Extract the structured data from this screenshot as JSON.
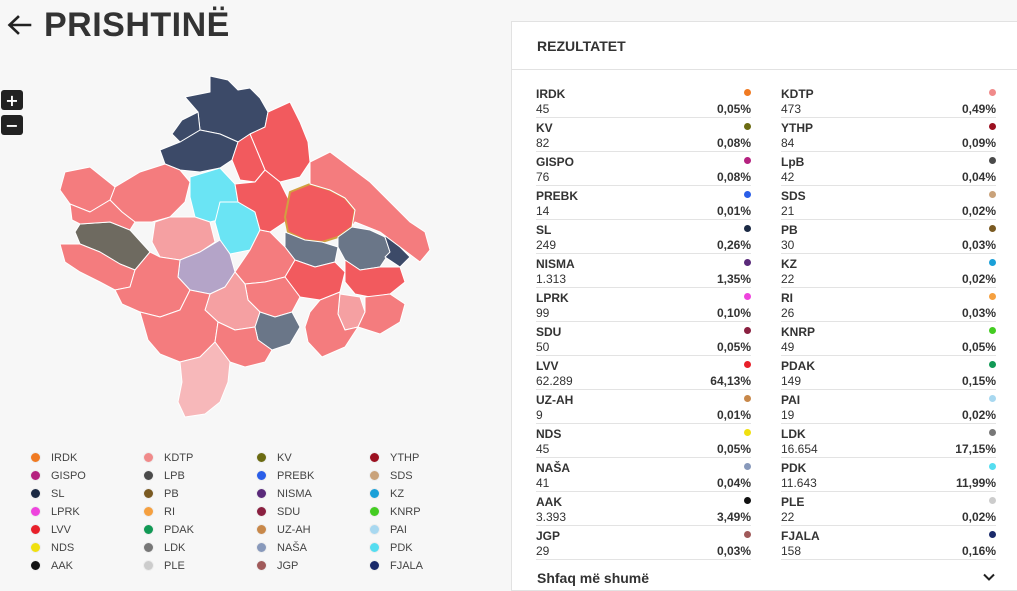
{
  "page": {
    "title": "PRISHTINË"
  },
  "zoom": {
    "in_label": "+",
    "out_label": "−"
  },
  "panel": {
    "title": "REZULTATET",
    "show_more": "Shfaq më shumë",
    "results": [
      {
        "name": "IRDK",
        "votes": "45",
        "pct": "0,05%",
        "color": "#f07a22"
      },
      {
        "name": "KDTP",
        "votes": "473",
        "pct": "0,49%",
        "color": "#f08a8a"
      },
      {
        "name": "KV",
        "votes": "82",
        "pct": "0,08%",
        "color": "#6b6b12"
      },
      {
        "name": "YTHP",
        "votes": "84",
        "pct": "0,09%",
        "color": "#9b1020"
      },
      {
        "name": "GISPO",
        "votes": "76",
        "pct": "0,08%",
        "color": "#b5227f"
      },
      {
        "name": "LpB",
        "votes": "42",
        "pct": "0,04%",
        "color": "#4a4a4a"
      },
      {
        "name": "PREBK",
        "votes": "14",
        "pct": "0,01%",
        "color": "#2a5ee8"
      },
      {
        "name": "SDS",
        "votes": "21",
        "pct": "0,02%",
        "color": "#c9a27a"
      },
      {
        "name": "SL",
        "votes": "249",
        "pct": "0,26%",
        "color": "#1c2a44"
      },
      {
        "name": "PB",
        "votes": "30",
        "pct": "0,03%",
        "color": "#7a5a22"
      },
      {
        "name": "NISMA",
        "votes": "1.313",
        "pct": "1,35%",
        "color": "#5a2a7a"
      },
      {
        "name": "KZ",
        "votes": "22",
        "pct": "0,02%",
        "color": "#1aa0d8"
      },
      {
        "name": "LPRK",
        "votes": "99",
        "pct": "0,10%",
        "color": "#ee44dd"
      },
      {
        "name": "RI",
        "votes": "26",
        "pct": "0,03%",
        "color": "#f5a040"
      },
      {
        "name": "SDU",
        "votes": "50",
        "pct": "0,05%",
        "color": "#8a2040"
      },
      {
        "name": "KNRP",
        "votes": "49",
        "pct": "0,05%",
        "color": "#44cc22"
      },
      {
        "name": "LVV",
        "votes": "62.289",
        "pct": "64,13%",
        "color": "#e8202a"
      },
      {
        "name": "PDAK",
        "votes": "149",
        "pct": "0,15%",
        "color": "#119955"
      },
      {
        "name": "UZ-AH",
        "votes": "9",
        "pct": "0,01%",
        "color": "#c8884a"
      },
      {
        "name": "PAI",
        "votes": "19",
        "pct": "0,02%",
        "color": "#a8d8f0"
      },
      {
        "name": "NDS",
        "votes": "45",
        "pct": "0,05%",
        "color": "#f0e010"
      },
      {
        "name": "LDK",
        "votes": "16.654",
        "pct": "17,15%",
        "color": "#777777"
      },
      {
        "name": "NAŠA",
        "votes": "41",
        "pct": "0,04%",
        "color": "#8899bb"
      },
      {
        "name": "PDK",
        "votes": "11.643",
        "pct": "11,99%",
        "color": "#55ddf0"
      },
      {
        "name": "AAK",
        "votes": "3.393",
        "pct": "3,49%",
        "color": "#111111"
      },
      {
        "name": "PLE",
        "votes": "22",
        "pct": "0,02%",
        "color": "#cccccc"
      },
      {
        "name": "JGP",
        "votes": "29",
        "pct": "0,03%",
        "color": "#a05a5a"
      },
      {
        "name": "FJALA",
        "votes": "158",
        "pct": "0,16%",
        "color": "#1a2a6a"
      }
    ]
  },
  "legend": [
    {
      "label": "IRDK",
      "color": "#f07a22"
    },
    {
      "label": "KDTP",
      "color": "#f08a8a"
    },
    {
      "label": "KV",
      "color": "#6b6b12"
    },
    {
      "label": "YTHP",
      "color": "#9b1020"
    },
    {
      "label": "GISPO",
      "color": "#b5227f"
    },
    {
      "label": "LPB",
      "color": "#4a4a4a"
    },
    {
      "label": "PREBK",
      "color": "#2a5ee8"
    },
    {
      "label": "SDS",
      "color": "#c9a27a"
    },
    {
      "label": "SL",
      "color": "#1c2a44"
    },
    {
      "label": "PB",
      "color": "#7a5a22"
    },
    {
      "label": "NISMA",
      "color": "#5a2a7a"
    },
    {
      "label": "KZ",
      "color": "#1aa0d8"
    },
    {
      "label": "LPRK",
      "color": "#ee44dd"
    },
    {
      "label": "RI",
      "color": "#f5a040"
    },
    {
      "label": "SDU",
      "color": "#8a2040"
    },
    {
      "label": "KNRP",
      "color": "#44cc22"
    },
    {
      "label": "LVV",
      "color": "#e8202a"
    },
    {
      "label": "PDAK",
      "color": "#119955"
    },
    {
      "label": "UZ-AH",
      "color": "#c8884a"
    },
    {
      "label": "PAI",
      "color": "#a8d8f0"
    },
    {
      "label": "NDS",
      "color": "#f0e010"
    },
    {
      "label": "LDK",
      "color": "#777777"
    },
    {
      "label": "NAŠA",
      "color": "#8899bb"
    },
    {
      "label": "PDK",
      "color": "#55ddf0"
    },
    {
      "label": "AAK",
      "color": "#111111"
    },
    {
      "label": "PLE",
      "color": "#cccccc"
    },
    {
      "label": "JGP",
      "color": "#a05a5a"
    },
    {
      "label": "FJALA",
      "color": "#1a2a6a"
    }
  ],
  "map_colors": {
    "lvv_strong": "#f25a5e",
    "lvv_mid": "#f47c7e",
    "lvv_light": "#f5a0a2",
    "lvv_pale": "#f7b8ba",
    "srb": "#3c4a68",
    "ldk": "#6a7688",
    "pdk": "#6ae4f4",
    "nisma": "#b4a4c8",
    "aak": "#6e6a60",
    "highlight_border": "#d2a040"
  }
}
